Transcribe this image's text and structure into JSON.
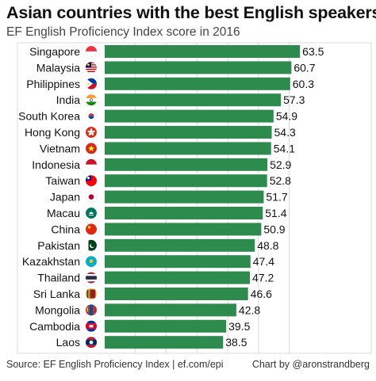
{
  "title": "Asian countries with the best English speakers",
  "subtitle": "EF English Proficiency Index score in 2016",
  "source": "Source: EF English Proficiency Index | ef.com/epi",
  "credit": "Chart by @aronstrandberg",
  "colors": {
    "bar": "#2e8b4e",
    "grid": "#d9d9d9",
    "background": "#ffffff",
    "text": "#111111"
  },
  "chart_data": {
    "type": "bar",
    "orientation": "horizontal",
    "title": "Asian countries with the best English speakers",
    "subtitle": "EF English Proficiency Index score in 2016",
    "categories": [
      "Singapore",
      "Malaysia",
      "Philippines",
      "India",
      "South Korea",
      "Hong Kong",
      "Vietnam",
      "Indonesia",
      "Taiwan",
      "Japan",
      "Macau",
      "China",
      "Pakistan",
      "Kazakhstan",
      "Thailand",
      "Sri Lanka",
      "Mongolia",
      "Cambodia",
      "Laos"
    ],
    "flags": [
      "flag-singapore",
      "flag-malaysia",
      "flag-philippines",
      "flag-india",
      "flag-south-korea",
      "flag-hong-kong",
      "flag-vietnam",
      "flag-indonesia",
      "flag-taiwan",
      "flag-japan",
      "flag-macau",
      "flag-china",
      "flag-pakistan",
      "flag-kazakhstan",
      "flag-thailand",
      "flag-sri-lanka",
      "flag-mongolia",
      "flag-cambodia",
      "flag-laos"
    ],
    "values": [
      63.5,
      60.7,
      60.3,
      57.3,
      54.9,
      54.3,
      54.1,
      52.9,
      52.8,
      51.7,
      51.4,
      50.9,
      48.8,
      47.4,
      47.2,
      46.6,
      42.8,
      39.5,
      38.5
    ],
    "value_labels": [
      "63.5",
      "60.7",
      "60.3",
      "57.3",
      "54.9",
      "54.3",
      "54.1",
      "52.9",
      "52.8",
      "51.7",
      "51.4",
      "50.9",
      "48.8",
      "47.4",
      "47.2",
      "46.6",
      "42.8",
      "39.5",
      "38.5"
    ],
    "xlim": [
      0,
      65
    ],
    "data_labels": "end of bar",
    "grid": true
  }
}
